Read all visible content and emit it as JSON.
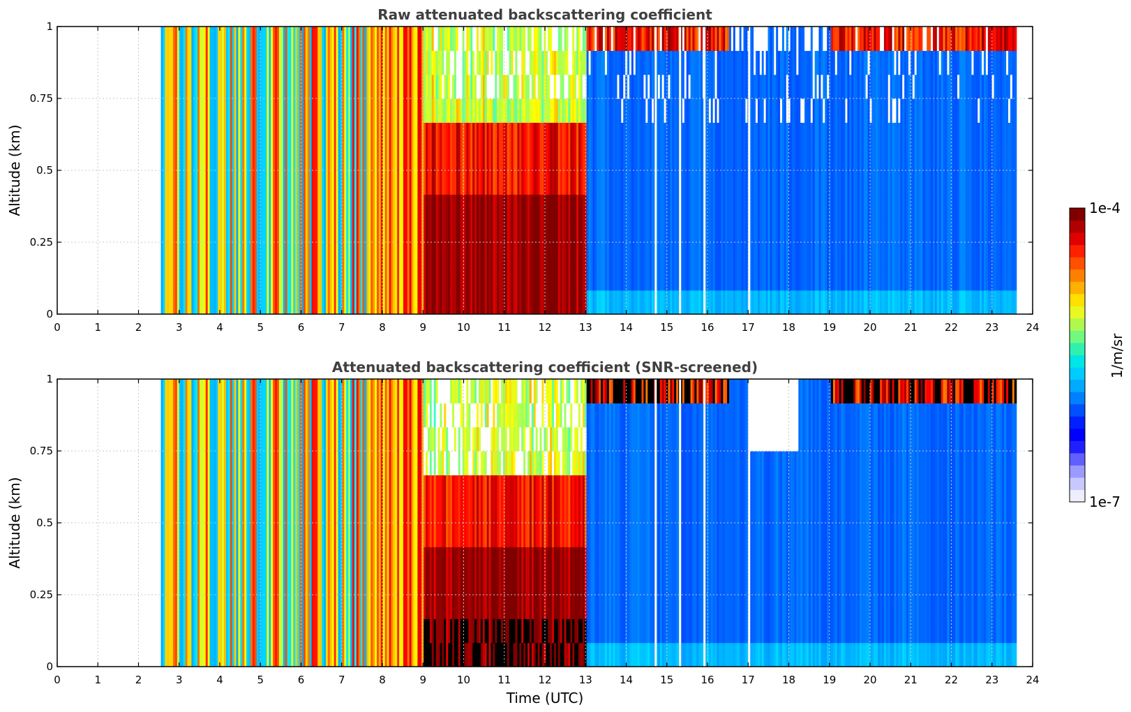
{
  "chart_data": [
    {
      "type": "heatmap",
      "title": "Raw attenuated backscattering coefficient",
      "xlabel": "",
      "ylabel": "Altitude (km)",
      "xlim": [
        0,
        24
      ],
      "ylim": [
        0,
        1
      ],
      "x_ticks": [
        "0",
        "1",
        "2",
        "3",
        "4",
        "5",
        "6",
        "7",
        "8",
        "9",
        "10",
        "11",
        "12",
        "13",
        "14",
        "15",
        "16",
        "17",
        "18",
        "19",
        "20",
        "21",
        "22",
        "23",
        "24"
      ],
      "y_ticks": [
        "0",
        "0.25",
        "0.5",
        "0.75",
        "1"
      ],
      "grid": true,
      "data_start_hour": 2.55,
      "data_end_hour": 23.6,
      "segments": [
        {
          "from": 2.55,
          "to": 7.6,
          "regime": "alternating blue / cyan / yellow / orange-red stripes, vertically uniform"
        },
        {
          "from": 7.6,
          "to": 9.0,
          "regime": "mixed yellow / red stripes, white gaps near top"
        },
        {
          "from": 9.0,
          "to": 13.0,
          "regime": "red and dark red near ground (0-0.4 km), yellow/white above"
        },
        {
          "from": 13.0,
          "to": 23.6,
          "regime": "blue background with speckled noise above 0.8 km, red patches at top around 13-16 h and 19-23.6 h"
        }
      ]
    },
    {
      "type": "heatmap",
      "title": "Attenuated backscattering coefficient (SNR-screened)",
      "xlabel": "Time (UTC)",
      "ylabel": "Altitude (km)",
      "xlim": [
        0,
        24
      ],
      "ylim": [
        0,
        1
      ],
      "x_ticks": [
        "0",
        "1",
        "2",
        "3",
        "4",
        "5",
        "6",
        "7",
        "8",
        "9",
        "10",
        "11",
        "12",
        "13",
        "14",
        "15",
        "16",
        "17",
        "18",
        "19",
        "20",
        "21",
        "22",
        "23",
        "24"
      ],
      "y_ticks": [
        "0",
        "0.25",
        "0.5",
        "0.75",
        "1"
      ],
      "grid": true,
      "data_start_hour": 2.55,
      "data_end_hour": 23.6,
      "segments": [
        {
          "from": 2.55,
          "to": 7.6,
          "regime": "alternating blue / cyan / yellow / orange-red stripes, vertically uniform"
        },
        {
          "from": 7.6,
          "to": 9.0,
          "regime": "mixed yellow / red stripes"
        },
        {
          "from": 9.0,
          "to": 13.0,
          "regime": "red with black saturated columns below 0.17 km, white screened areas above 0.6 km"
        },
        {
          "from": 13.0,
          "to": 23.6,
          "regime": "smooth blue, black/red cloud tops near 1 km, screened white gap around 17-18 h above 0.75 km"
        }
      ]
    }
  ],
  "colorbar": {
    "label": "1/m/sr",
    "max_label": "1e-4",
    "min_label": "1e-7",
    "colors": [
      "#eeeeff",
      "#c8c8ff",
      "#9a9aff",
      "#6060ff",
      "#2020ff",
      "#0000ff",
      "#0020ff",
      "#0050ff",
      "#0080ff",
      "#00aaff",
      "#00ccff",
      "#00e5e5",
      "#30f0b0",
      "#70f880",
      "#b0f850",
      "#e8f820",
      "#ffe000",
      "#ffb000",
      "#ff8000",
      "#ff5000",
      "#ff2000",
      "#e00000",
      "#b00000",
      "#800000"
    ]
  }
}
